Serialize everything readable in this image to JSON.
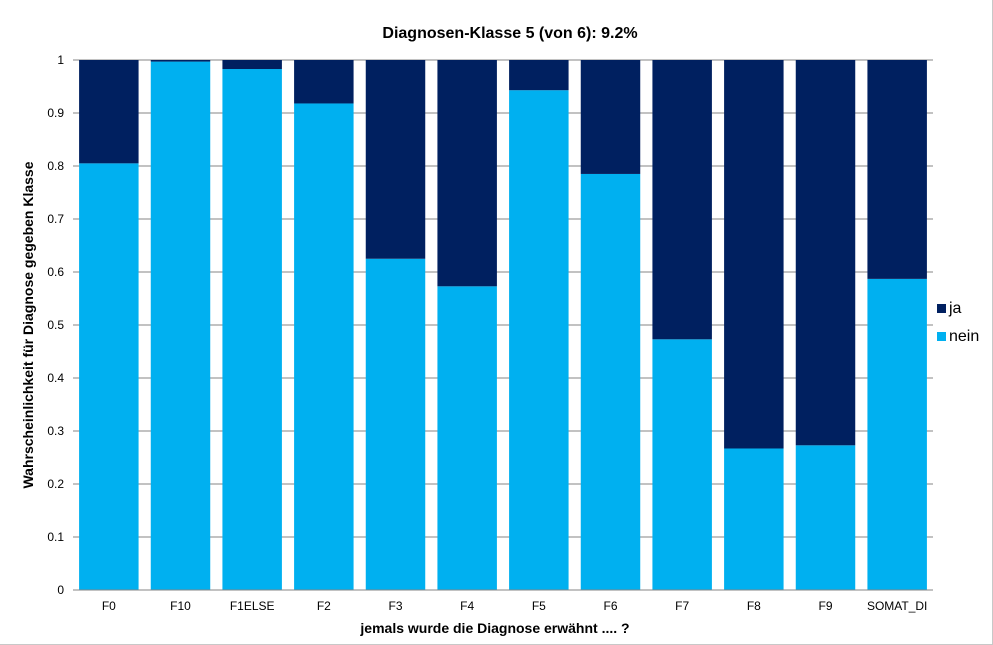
{
  "chart_data": {
    "type": "bar",
    "stacked": true,
    "title": "Diagnosen-Klasse 5 (von 6):  9.2%",
    "xlabel": "jemals wurde die Diagnose erwähnt .... ?",
    "ylabel": "Wahrscheinlichkeit für Diagnose gegeben Klasse",
    "ylim": [
      0,
      1
    ],
    "yticks": [
      "0",
      "0.1",
      "0.2",
      "0.3",
      "0.4",
      "0.5",
      "0.6",
      "0.7",
      "0.8",
      "0.9",
      "1"
    ],
    "grid": "horizontal",
    "legend_position": "right",
    "categories": [
      "F0",
      "F10",
      "F1ELSE",
      "F2",
      "F3",
      "F4",
      "F5",
      "F6",
      "F7",
      "F8",
      "F9",
      "SOMAT_DI"
    ],
    "series": [
      {
        "name": "nein",
        "color": "#00B0F0",
        "values": [
          0.805,
          0.997,
          0.983,
          0.918,
          0.625,
          0.573,
          0.943,
          0.785,
          0.473,
          0.267,
          0.273,
          0.587
        ]
      },
      {
        "name": "ja",
        "color": "#002060",
        "values": [
          0.195,
          0.003,
          0.017,
          0.082,
          0.375,
          0.427,
          0.057,
          0.215,
          0.527,
          0.733,
          0.727,
          0.413
        ]
      }
    ],
    "legend_order": [
      "ja",
      "nein"
    ]
  }
}
